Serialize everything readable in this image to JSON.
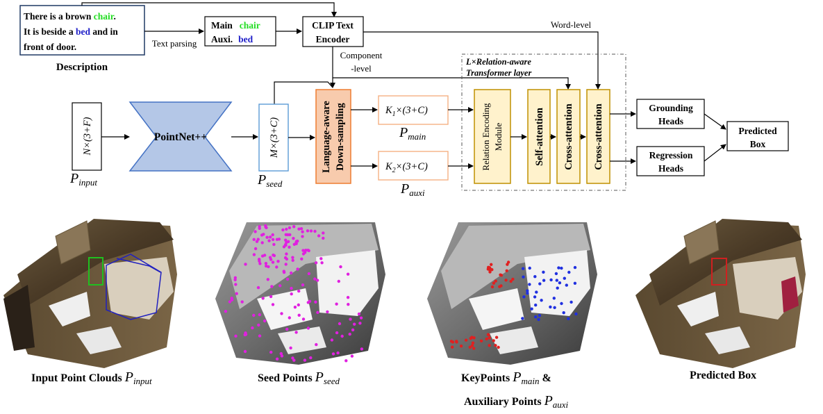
{
  "description": {
    "line1_pre": "There is a brown ",
    "chair": "chair",
    "line1_post": ".",
    "line2_pre": "It is beside a ",
    "bed": "bed",
    "line2_post": " and in",
    "line3": "front of door.",
    "title": "Description"
  },
  "text_parsing": "Text parsing",
  "parsed": {
    "main_label": "Main",
    "main_word": "chair",
    "auxi_label": "Auxi.",
    "auxi_word": "bed"
  },
  "clip": {
    "line1": "CLIP Text",
    "line2": "Encoder"
  },
  "word_level": "Word-level",
  "component_level": {
    "line1": "Component",
    "line2": "-level"
  },
  "transformer_caption": {
    "prefix": "L×",
    "line1": "Relation-aware",
    "line2": "Transformer layer"
  },
  "p_input_box": "N×(3+F)",
  "pointnet": "PointNet++",
  "p_seed_box": "M×(3+C)",
  "downsampling": {
    "line1": "Language-aware",
    "line2": "Down-sampling"
  },
  "k1": {
    "var": "K",
    "sub": "1",
    "rest": "×(3+C)"
  },
  "k2": {
    "var": "K",
    "sub": "2",
    "rest": "×(3+C)"
  },
  "p_labels": {
    "input": {
      "P": "P",
      "sub": "input"
    },
    "seed": {
      "P": "P",
      "sub": "seed"
    },
    "main": {
      "P": "P",
      "sub": "main"
    },
    "auxi": {
      "P": "P",
      "sub": "auxi"
    }
  },
  "relation_module": {
    "line1": "Relation Encoding",
    "line2": "Module"
  },
  "self_attention": "Self-attention",
  "cross_attention_1": "Cross-attention",
  "cross_attention_2": "Cross-attention",
  "grounding": {
    "line1": "Grounding",
    "line2": "Heads"
  },
  "regression": {
    "line1": "Regression",
    "line2": "Heads"
  },
  "predicted": {
    "line1": "Predicted",
    "line2": "Box"
  },
  "captions": {
    "input_text": "Input Point Clouds",
    "seed_text": "Seed Points",
    "keypoints_text": "KeyPoints",
    "amp": "&",
    "aux_text": "Auxiliary Points",
    "pred_text": "Predicted Box"
  },
  "colors": {
    "chair_green": "#22dd22",
    "bed_blue": "#1e1ec8",
    "pointnet_fill": "#b4c7e7",
    "pointnet_stroke": "#4472c4",
    "downsampling_fill": "#f8cbad",
    "downsampling_stroke": "#ed7d31",
    "attention_fill": "#fff2cc",
    "attention_stroke": "#bf9000",
    "seed_magenta": "#e020e0",
    "key_red": "#e02020",
    "aux_blue": "#2030e0"
  }
}
